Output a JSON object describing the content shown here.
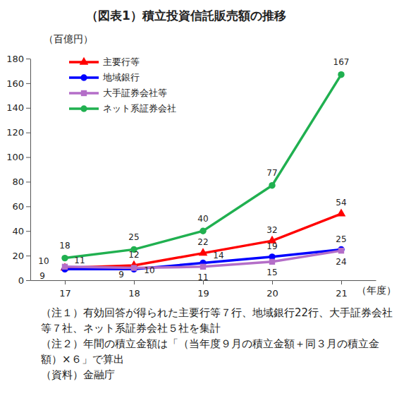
{
  "chart_data": {
    "type": "line",
    "title": "（図表1）積立投資信託販売額の推移",
    "y_label": "（百億円）",
    "x_label": "（年度）",
    "categories": [
      "17",
      "18",
      "19",
      "20",
      "21"
    ],
    "series": [
      {
        "name": "主要行等",
        "color": "#ff0000",
        "marker": "triangle",
        "values": [
          10,
          12,
          22,
          32,
          54
        ]
      },
      {
        "name": "地域銀行",
        "color": "#0000ff",
        "marker": "circle",
        "values": [
          9,
          9,
          14,
          19,
          25
        ]
      },
      {
        "name": "大手証券会社等",
        "color": "#b46ec8",
        "marker": "square",
        "values": [
          11,
          10,
          11,
          15,
          24
        ]
      },
      {
        "name": "ネット系証券会社",
        "color": "#20b050",
        "marker": "circle",
        "values": [
          18,
          25,
          40,
          77,
          167
        ]
      }
    ],
    "ylim": [
      0,
      180
    ],
    "yticks": [
      0,
      20,
      40,
      60,
      80,
      100,
      120,
      140,
      160,
      180
    ],
    "grid": false,
    "legend": "upper left",
    "data_labels": true,
    "notes": [
      "（注１）有効回答が得られた主要行等７行、地域銀行22行、大手証券会社等７社、ネット系証券会社５社を集計",
      "（注２）年間の積立金額は「（当年度９月の積立金額＋同３月の積立金額）×６」で算出",
      "（資料）金融庁"
    ]
  }
}
